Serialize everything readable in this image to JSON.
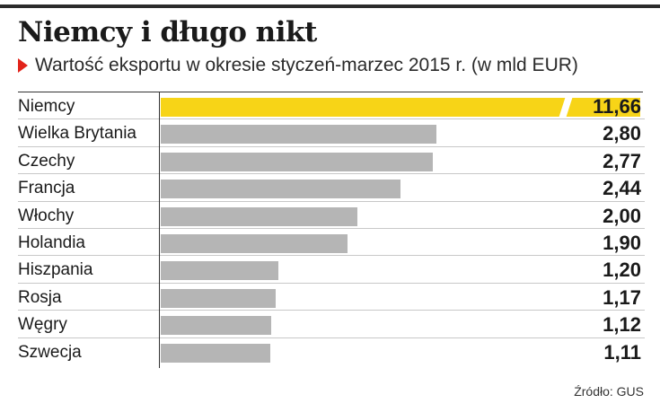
{
  "header": {
    "title": "Niemcy i długo nikt",
    "subtitle": "Wartość eksportu w okresie styczeń-marzec 2015 r. (w mld EUR)"
  },
  "colors": {
    "highlight": "#f7d417",
    "bar": "#b5b5b5",
    "marker": "#e2231a"
  },
  "chart_data": {
    "type": "bar",
    "orientation": "horizontal",
    "title": "Niemcy i długo nikt",
    "subtitle": "Wartość eksportu w okresie styczeń-marzec 2015 r. (w mld EUR)",
    "categories": [
      "Niemcy",
      "Wielka Brytania",
      "Czechy",
      "Francja",
      "Włochy",
      "Holandia",
      "Hiszpania",
      "Rosja",
      "Węgry",
      "Szwecja"
    ],
    "values": [
      11.66,
      2.8,
      2.77,
      2.44,
      2.0,
      1.9,
      1.2,
      1.17,
      1.12,
      1.11
    ],
    "value_labels": [
      "11,66",
      "2,80",
      "2,77",
      "2,44",
      "2,00",
      "1,90",
      "1,20",
      "1,17",
      "1,12",
      "1,11"
    ],
    "highlighted_category": "Niemcy",
    "broken_bar": "Niemcy",
    "xlim": [
      0,
      4.25
    ],
    "grid": false,
    "legend": "none"
  },
  "footer": {
    "source": "Źródło: GUS"
  }
}
